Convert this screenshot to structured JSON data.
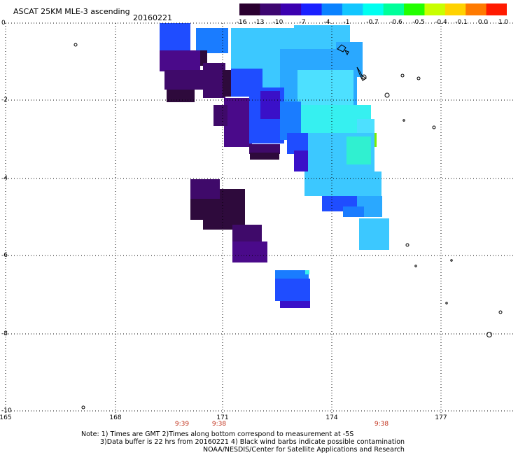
{
  "header": {
    "title": "ASCAT 25KM MLE-3 ascending",
    "date": "20160221"
  },
  "colorbar": {
    "labels": [
      "-16",
      "-13",
      "-10",
      "-7",
      "-4",
      "-1",
      "-0.7",
      "-0.6",
      "-0.5",
      "-0.4",
      "-0.1",
      "0.0",
      "1.0"
    ],
    "colors": [
      "#2a0030",
      "#3d0670",
      "#3b00b0",
      "#1a20ff",
      "#0a82ff",
      "#12c6ff",
      "#00fff0",
      "#00ff9a",
      "#22ff00",
      "#c8ff00",
      "#ffd200",
      "#ff7a00",
      "#ff1a00"
    ]
  },
  "axes": {
    "lat_labels": [
      "0",
      "-2",
      "-4",
      "-6",
      "-8",
      "-10"
    ],
    "lon_labels": [
      "165",
      "168",
      "171",
      "174",
      "177"
    ]
  },
  "times": [
    "9:39",
    "9:38",
    "9:38"
  ],
  "notes": {
    "line1": "Note: 1) Times are GMT 2)Times along bottom correspond to measurement at -5S",
    "line2": "3)Data buffer is 22 hrs from 20160221 4) Black wind barbs indicate possible contamination",
    "line3": "NOAA/NESDIS/Center for Satellite Applications and Research"
  }
}
